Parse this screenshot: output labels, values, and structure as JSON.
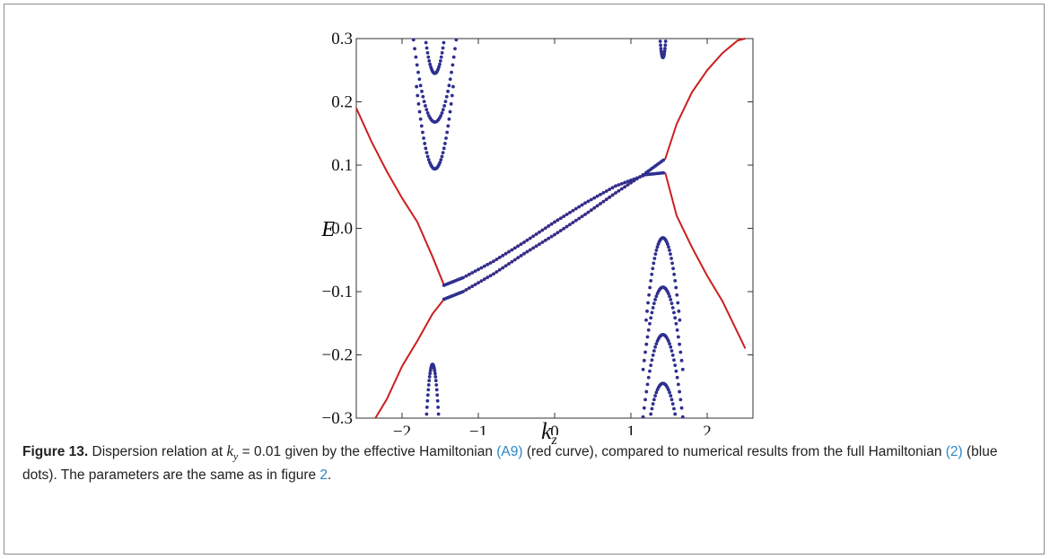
{
  "chart_data": {
    "type": "scatter",
    "title": "",
    "xlabel": "k_z",
    "ylabel": "E",
    "xlim": [
      -2.6,
      2.6
    ],
    "ylim": [
      -0.3,
      0.3
    ],
    "xticks": [
      -2,
      -1,
      0,
      1,
      2
    ],
    "yticks": [
      -0.3,
      -0.2,
      -0.1,
      0.0,
      0.1,
      0.2,
      0.3
    ],
    "xtick_labels": [
      "−2",
      "−1",
      "0",
      "1",
      "2"
    ],
    "ytick_labels": [
      "−0.3",
      "−0.2",
      "−0.1",
      "0.0",
      "0.1",
      "0.2",
      "0.3"
    ],
    "grid": false,
    "legend": "none",
    "colors": {
      "curve": "#cc1f1f",
      "dots": "#2e2f8f"
    },
    "series": [
      {
        "kind": "curve",
        "x": [
          -2.6,
          -2.4,
          -2.2,
          -2.0,
          -1.8,
          -1.6,
          -1.45,
          -1.2,
          -0.8,
          -0.4,
          0.0,
          0.4,
          0.8,
          1.2,
          1.45
        ],
        "y": [
          0.19,
          0.137,
          0.09,
          0.048,
          0.01,
          -0.045,
          -0.09,
          -0.078,
          -0.052,
          -0.022,
          0.01,
          0.04,
          0.067,
          0.085,
          0.088
        ]
      },
      {
        "kind": "curve",
        "x": [
          -1.45,
          -1.2,
          -0.8,
          -0.4,
          0.0,
          0.4,
          0.8,
          1.2,
          1.45,
          1.6,
          1.8,
          2.0,
          2.2,
          2.4,
          2.5
        ],
        "y": [
          -0.112,
          -0.1,
          -0.072,
          -0.04,
          -0.01,
          0.022,
          0.056,
          0.088,
          0.11,
          0.165,
          0.215,
          0.25,
          0.277,
          0.297,
          0.305
        ]
      },
      {
        "kind": "curve",
        "x": [
          -2.35,
          -2.2,
          -2.0,
          -1.8,
          -1.6,
          -1.45
        ],
        "y": [
          -0.3,
          -0.27,
          -0.218,
          -0.178,
          -0.135,
          -0.112
        ]
      },
      {
        "kind": "curve",
        "x": [
          1.45,
          1.6,
          1.8,
          2.0,
          2.2,
          2.4,
          2.5
        ],
        "y": [
          0.088,
          0.02,
          -0.03,
          -0.075,
          -0.115,
          -0.165,
          -0.19
        ]
      },
      {
        "kind": "dots",
        "bands": [
          {
            "center": -1.57,
            "half": 0.19,
            "top": 0.245,
            "dir": 1
          },
          {
            "center": -1.57,
            "half": 0.28,
            "top": 0.168,
            "dir": 1
          },
          {
            "center": -1.57,
            "half": 0.24,
            "top": 0.094,
            "dir": 1
          },
          {
            "center": 1.42,
            "half": 0.08,
            "top": 0.27,
            "dir": 1
          },
          {
            "center": -1.6,
            "half": 0.1,
            "top": -0.215,
            "dir": -1
          },
          {
            "center": 1.42,
            "half": 0.26,
            "top": -0.245,
            "dir": -1
          },
          {
            "center": 1.42,
            "half": 0.26,
            "top": -0.168,
            "dir": -1
          },
          {
            "center": 1.42,
            "half": 0.26,
            "top": -0.093,
            "dir": -1
          },
          {
            "center": 1.42,
            "half": 0.22,
            "top": -0.015,
            "dir": -1
          }
        ]
      }
    ]
  },
  "caption": {
    "label": "Figure 13.",
    "part1": " Dispersion relation at ",
    "ky_sym": "k",
    "ky_sub": "y",
    "part2": " = 0.01 given by the effective Hamiltonian ",
    "ref_a9": "(A9)",
    "part3": " (red curve), compared to numerical results from the full Hamiltonian ",
    "ref_2": "(2)",
    "part4": " (blue dots). The parameters are the same as in figure ",
    "ref_fig2": "2",
    "part5": "."
  }
}
